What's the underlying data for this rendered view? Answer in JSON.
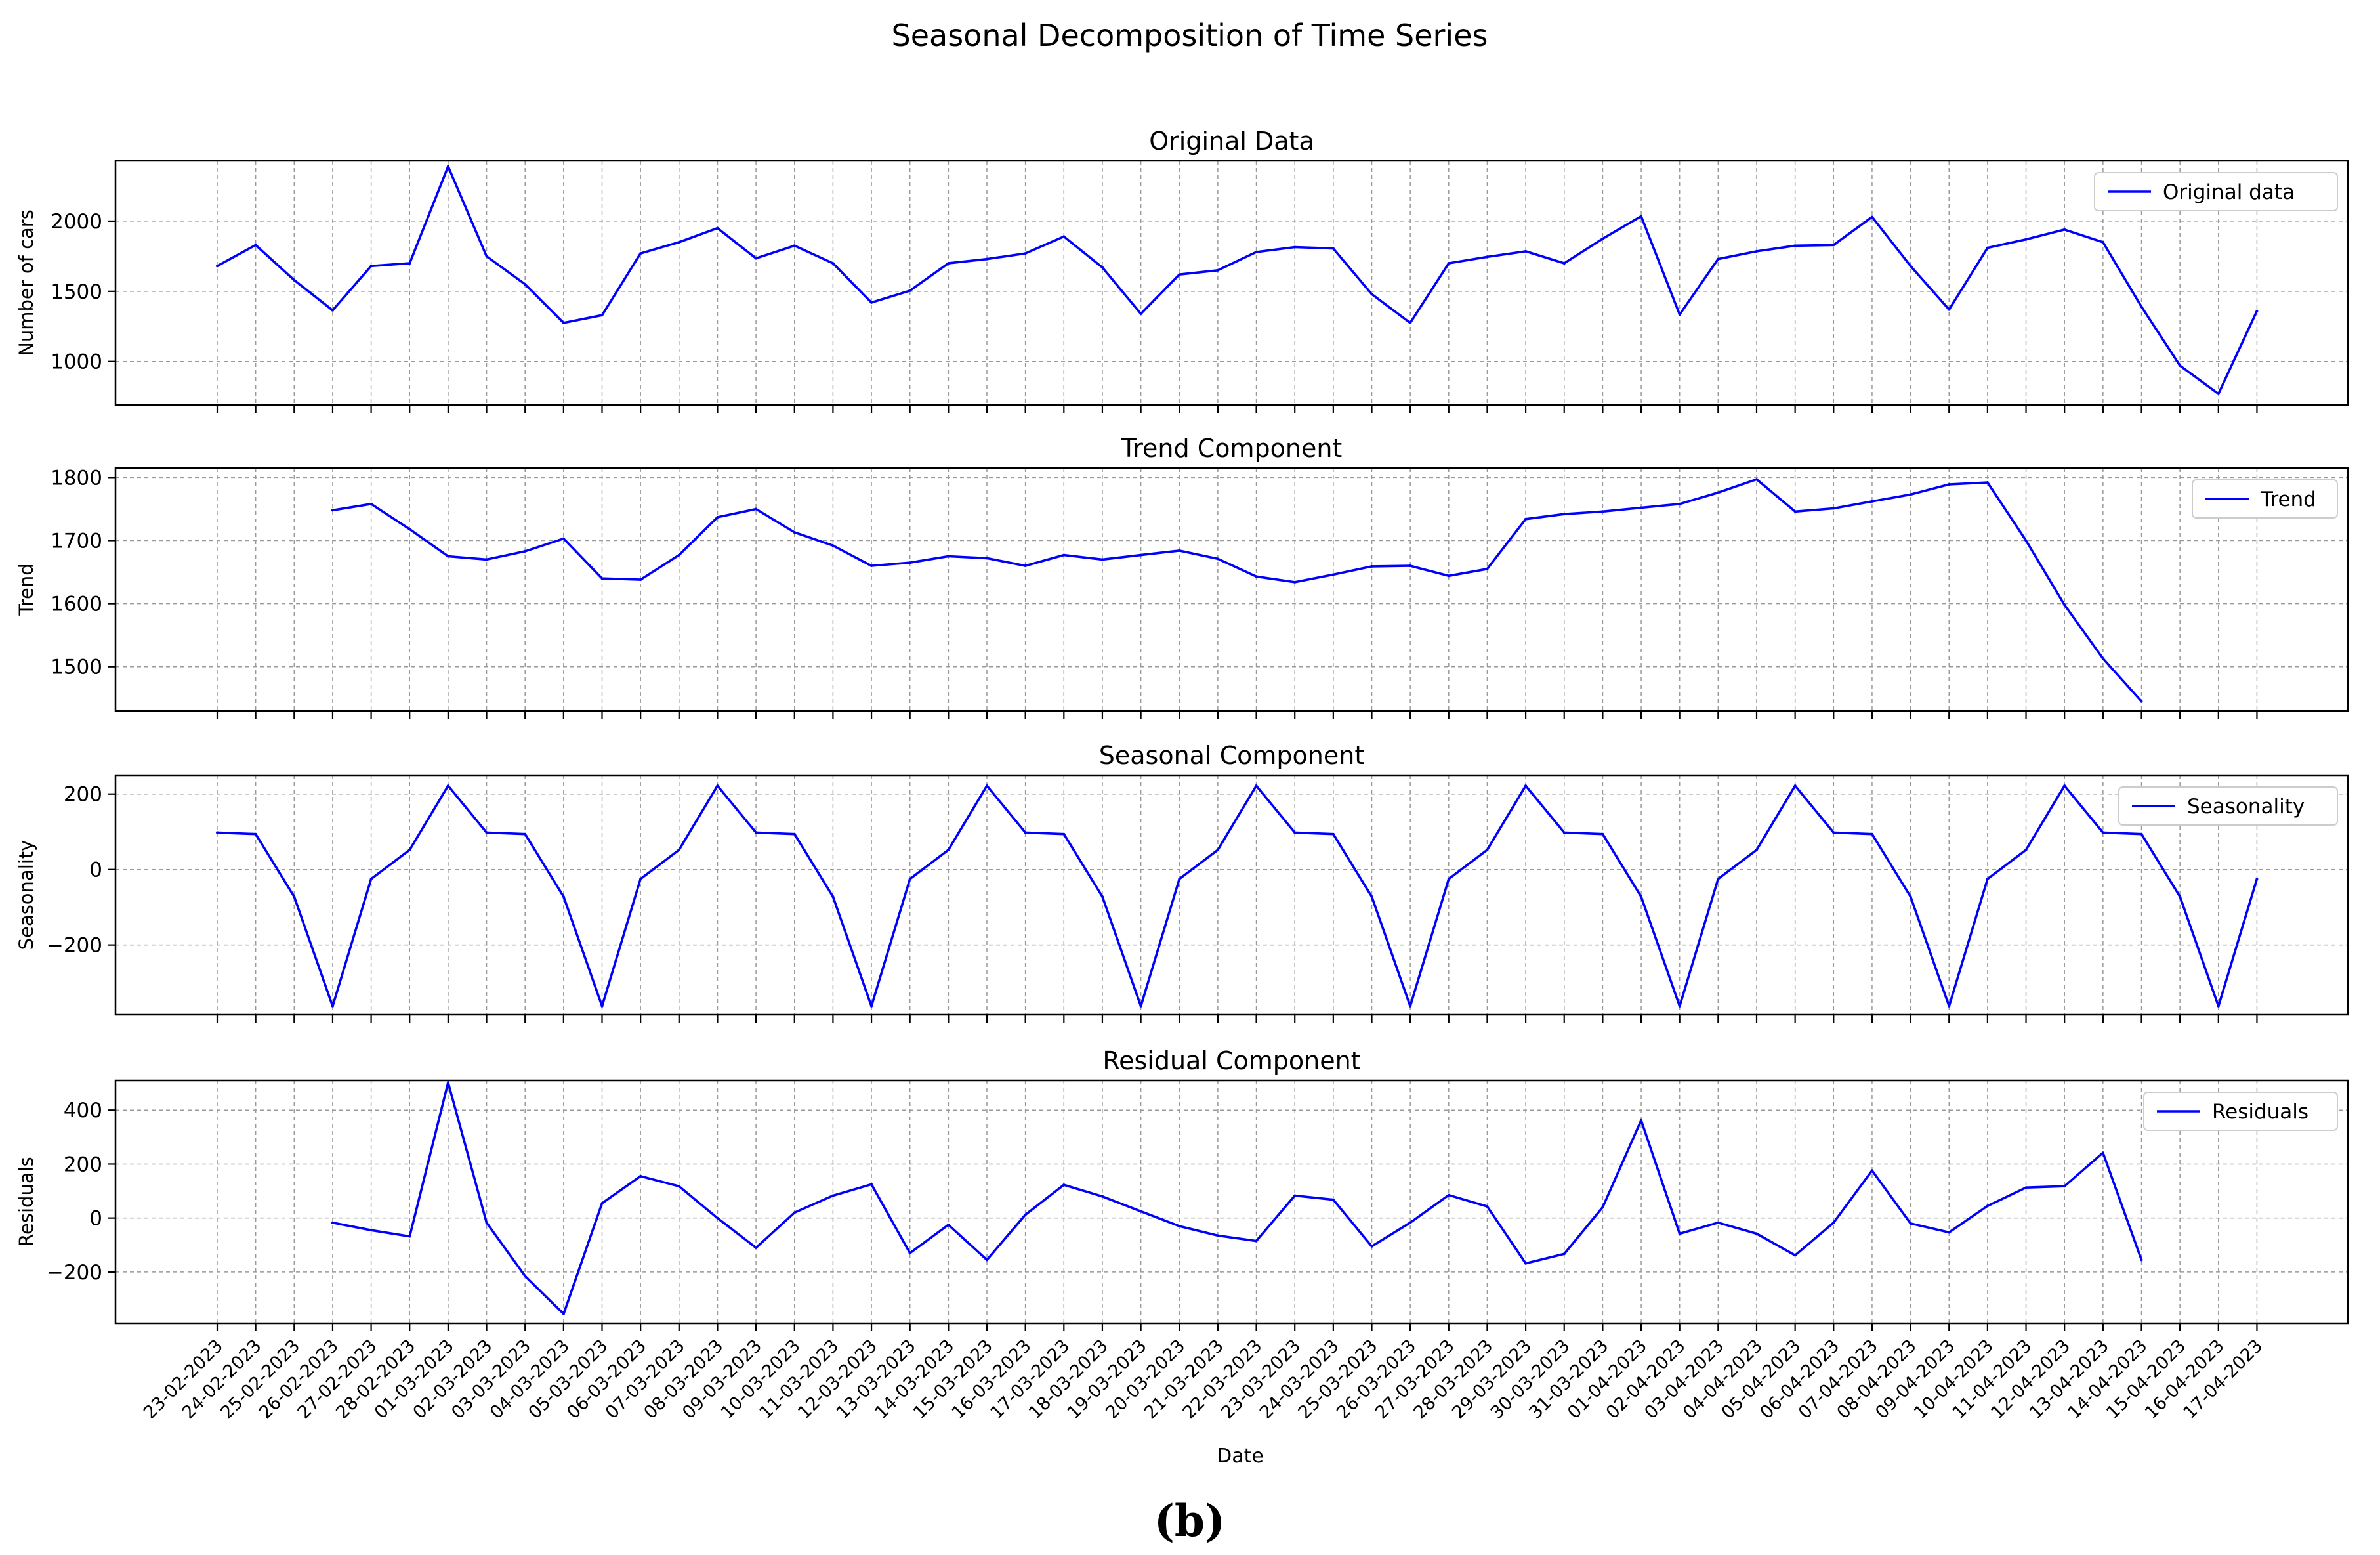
{
  "figure": {
    "title": "Seasonal Decomposition of Time Series",
    "caption": "(b)",
    "xlabel": "Date",
    "line_color": "#0000ff"
  },
  "chart_data": [
    {
      "type": "line",
      "title": "Original Data",
      "ylabel": "Number of cars",
      "ylim": [
        690,
        2430
      ],
      "yticks": [
        1000,
        1500,
        2000
      ],
      "grid": true,
      "legend_position": "top-right",
      "series": [
        {
          "name": "Original data",
          "values": [
            1680,
            1830,
            1580,
            1365,
            1680,
            1700,
            2390,
            1750,
            1550,
            1275,
            1330,
            1770,
            1850,
            1950,
            1735,
            1825,
            1700,
            1420,
            1505,
            1700,
            1730,
            1770,
            1890,
            1670,
            1340,
            1620,
            1650,
            1780,
            1815,
            1805,
            1480,
            1275,
            1700,
            1745,
            1785,
            1700,
            1875,
            2035,
            1335,
            1730,
            1785,
            1825,
            1830,
            2030,
            1680,
            1370,
            1810,
            1870,
            1940,
            1850,
            1390,
            970,
            770,
            1360
          ]
        }
      ]
    },
    {
      "type": "line",
      "title": "Trend Component",
      "ylabel": "Trend",
      "ylim": [
        1430,
        1815
      ],
      "yticks": [
        1500,
        1600,
        1700,
        1800
      ],
      "grid": true,
      "legend_position": "top-right",
      "series": [
        {
          "name": "Trend",
          "values": [
            null,
            null,
            null,
            1748,
            1758,
            1718,
            1675,
            1670,
            1683,
            1703,
            1640,
            1638,
            1677,
            1737,
            1750,
            1713,
            1692,
            1660,
            1665,
            1675,
            1672,
            1660,
            1677,
            1670,
            1677,
            1684,
            1671,
            1643,
            1634,
            1646,
            1659,
            1660,
            1644,
            1655,
            1734,
            1742,
            1746,
            1752,
            1758,
            1776,
            1797,
            1746,
            1751,
            1762,
            1773,
            1789,
            1792,
            1700,
            1598,
            1513,
            1445,
            null,
            null,
            null
          ]
        }
      ]
    },
    {
      "type": "line",
      "title": "Seasonal Component",
      "ylabel": "Seasonality",
      "ylim": [
        -385,
        250
      ],
      "yticks": [
        -200,
        0,
        200
      ],
      "grid": true,
      "legend_position": "top-right",
      "series": [
        {
          "name": "Seasonality",
          "values": [
            98,
            94,
            -72,
            -362,
            -25,
            52,
            222,
            98,
            94,
            -72,
            -362,
            -25,
            52,
            222,
            98,
            94,
            -72,
            -362,
            -25,
            52,
            222,
            98,
            94,
            -72,
            -362,
            -25,
            52,
            222,
            98,
            94,
            -72,
            -362,
            -25,
            52,
            222,
            98,
            94,
            -72,
            -362,
            -25,
            52,
            222,
            98,
            94,
            -72,
            -362,
            -25,
            52,
            222,
            98,
            94,
            -72,
            -362,
            -25
          ]
        }
      ]
    },
    {
      "type": "line",
      "title": "Residual Component",
      "ylabel": "Residuals",
      "ylim": [
        -390,
        510
      ],
      "yticks": [
        -200,
        0,
        200,
        400
      ],
      "grid": true,
      "legend_position": "top-right",
      "series": [
        {
          "name": "Residuals",
          "values": [
            null,
            null,
            null,
            -17,
            -45,
            -68,
            502,
            -17,
            -215,
            -355,
            55,
            155,
            118,
            0,
            -110,
            20,
            83,
            125,
            -130,
            -25,
            -155,
            12,
            123,
            80,
            25,
            -30,
            -65,
            -85,
            83,
            68,
            -105,
            -17,
            85,
            43,
            -168,
            -133,
            40,
            362,
            -58,
            -17,
            -58,
            -138,
            -17,
            176,
            -20,
            -53,
            45,
            113,
            118,
            242,
            -155,
            null,
            null,
            null
          ]
        }
      ]
    }
  ],
  "x_dates": [
    "23-02-2023",
    "24-02-2023",
    "25-02-2023",
    "26-02-2023",
    "27-02-2023",
    "28-02-2023",
    "01-03-2023",
    "02-03-2023",
    "03-03-2023",
    "04-03-2023",
    "05-03-2023",
    "06-03-2023",
    "07-03-2023",
    "08-03-2023",
    "09-03-2023",
    "10-03-2023",
    "11-03-2023",
    "12-03-2023",
    "13-03-2023",
    "14-03-2023",
    "15-03-2023",
    "16-03-2023",
    "17-03-2023",
    "18-03-2023",
    "19-03-2023",
    "20-03-2023",
    "21-03-2023",
    "22-03-2023",
    "23-03-2023",
    "24-03-2023",
    "25-03-2023",
    "26-03-2023",
    "27-03-2023",
    "28-03-2023",
    "29-03-2023",
    "30-03-2023",
    "31-03-2023",
    "01-04-2023",
    "02-04-2023",
    "03-04-2023",
    "04-04-2023",
    "05-04-2023",
    "06-04-2023",
    "07-04-2023",
    "08-04-2023",
    "09-04-2023",
    "10-04-2023",
    "11-04-2023",
    "12-04-2023",
    "13-04-2023",
    "14-04-2023",
    "15-04-2023",
    "16-04-2023",
    "17-04-2023"
  ]
}
